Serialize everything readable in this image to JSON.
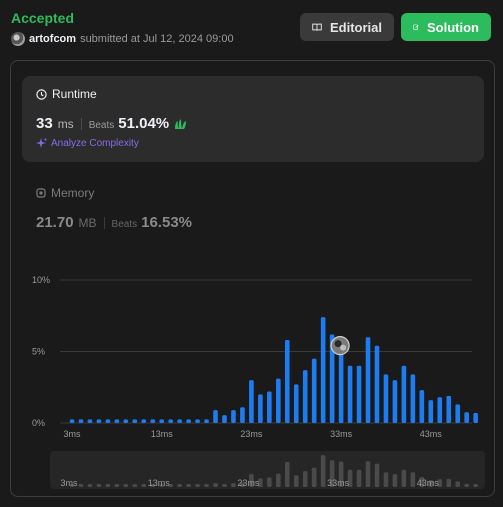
{
  "header": {
    "status": "Accepted",
    "username": "artofcom",
    "submitted_text": "submitted at Jul 12, 2024 09:00",
    "editorial_label": "Editorial",
    "solution_label": "Solution"
  },
  "runtime": {
    "title": "Runtime",
    "value": "33",
    "unit": "ms",
    "beats_label": "Beats",
    "beats_value": "51.04%",
    "analyze_label": "Analyze Complexity"
  },
  "memory": {
    "title": "Memory",
    "value": "21.70",
    "unit": "MB",
    "beats_label": "Beats",
    "beats_value": "16.53%"
  },
  "colors": {
    "accent_green": "#2cbb5d",
    "bar_blue": "#1d7cf2",
    "analyze_purple": "#8a6ce8"
  },
  "chart_data": {
    "type": "bar",
    "y_ticks": [
      "10%",
      "5%",
      "0%"
    ],
    "x_tick_labels": [
      "3ms",
      "13ms",
      "23ms",
      "33ms",
      "43ms"
    ],
    "x_tick_indices": [
      0,
      10,
      20,
      30,
      40
    ],
    "ylim": [
      0,
      10
    ],
    "values": [
      0.25,
      0.25,
      0.25,
      0.25,
      0.25,
      0.25,
      0.25,
      0.25,
      0.25,
      0.25,
      0.25,
      0.25,
      0.25,
      0.25,
      0.25,
      0.25,
      0.9,
      0.55,
      0.9,
      1.1,
      3.0,
      2.0,
      2.2,
      3.1,
      5.8,
      2.7,
      3.7,
      4.5,
      7.4,
      6.2,
      5.9,
      4.0,
      4.0,
      6.0,
      5.4,
      3.4,
      3.0,
      4.0,
      3.4,
      2.3,
      1.6,
      1.8,
      1.9,
      1.3,
      0.75,
      0.7
    ],
    "highlight_index": 30,
    "overview_labels": [
      "3ms",
      "13ms",
      "23ms",
      "33ms",
      "43ms"
    ]
  }
}
